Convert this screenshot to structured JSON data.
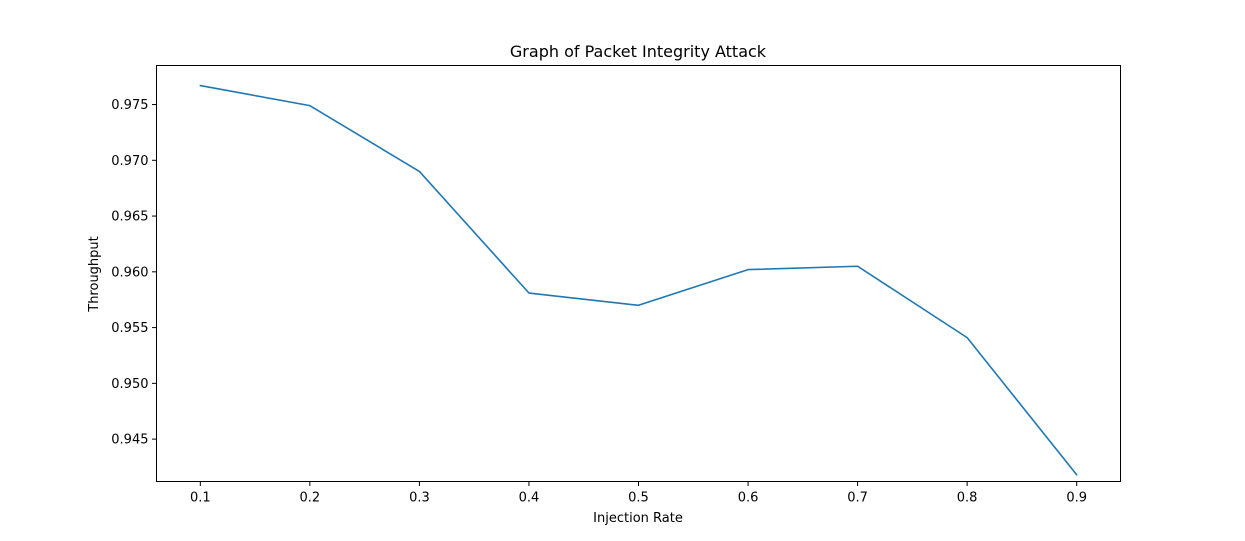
{
  "chart_data": {
    "type": "line",
    "title": "Graph of Packet Integrity Attack",
    "xlabel": "Injection Rate",
    "ylabel": "Throughput",
    "x": [
      0.1,
      0.2,
      0.3,
      0.4,
      0.5,
      0.6,
      0.7,
      0.8,
      0.9
    ],
    "xlim": [
      0.06,
      0.94
    ],
    "ylim": [
      0.9412,
      0.9785
    ],
    "x_ticks": [
      "0.1",
      "0.2",
      "0.3",
      "0.4",
      "0.5",
      "0.6",
      "0.7",
      "0.8",
      "0.9"
    ],
    "y_ticks": [
      "0.945",
      "0.950",
      "0.955",
      "0.960",
      "0.965",
      "0.970",
      "0.975"
    ],
    "series": [
      {
        "color": "#1f77b4",
        "values": [
          0.9767,
          0.9749,
          0.969,
          0.9581,
          0.957,
          0.9602,
          0.9605,
          0.9541,
          0.9418
        ]
      }
    ],
    "grid": false,
    "legend": "none"
  }
}
